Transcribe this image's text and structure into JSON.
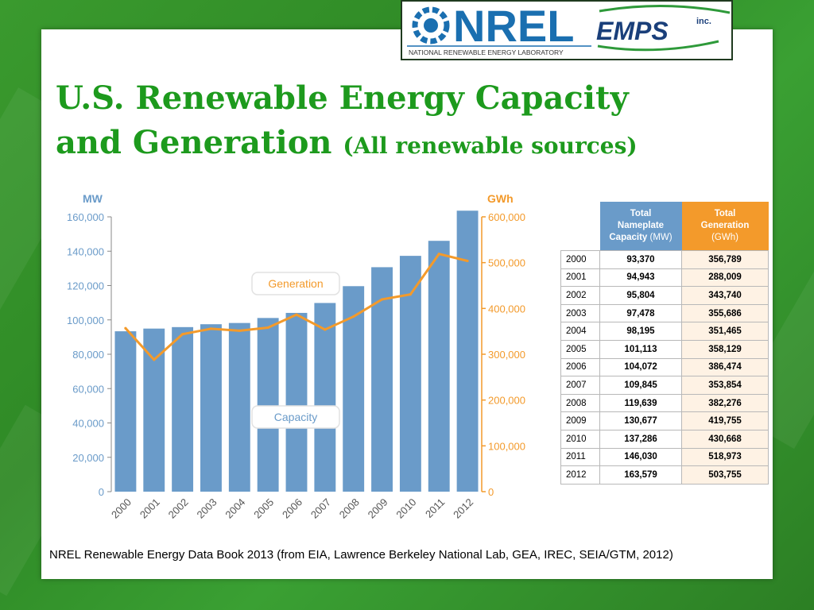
{
  "slide": {
    "title_line1": "U.S. Renewable Energy Capacity",
    "title_line2": "and Generation",
    "title_sub": "(All renewable sources)",
    "caption": "NREL Renewable Energy Data Book 2013 (from EIA, Lawrence Berkeley National Lab, GEA, IREC, SEIA/GTM, 2012)"
  },
  "logo": {
    "nrel_text": "NREL",
    "nrel_subtitle": "NATIONAL RENEWABLE ENERGY LABORATORY",
    "emps_text": "EMPS",
    "emps_inc": "inc."
  },
  "table": {
    "header_mw_line1": "Total",
    "header_mw_line2": "Nameplate",
    "header_mw_line3": "Capacity",
    "header_mw_unit": "(MW)",
    "header_gw_line1": "Total",
    "header_gw_line2": "Generation",
    "header_gw_unit": "(GWh)",
    "rows": [
      {
        "year": "2000",
        "mw": "93,370",
        "gwh": "356,789"
      },
      {
        "year": "2001",
        "mw": "94,943",
        "gwh": "288,009"
      },
      {
        "year": "2002",
        "mw": "95,804",
        "gwh": "343,740"
      },
      {
        "year": "2003",
        "mw": "97,478",
        "gwh": "355,686"
      },
      {
        "year": "2004",
        "mw": "98,195",
        "gwh": "351,465"
      },
      {
        "year": "2005",
        "mw": "101,113",
        "gwh": "358,129"
      },
      {
        "year": "2006",
        "mw": "104,072",
        "gwh": "386,474"
      },
      {
        "year": "2007",
        "mw": "109,845",
        "gwh": "353,854"
      },
      {
        "year": "2008",
        "mw": "119,639",
        "gwh": "382,276"
      },
      {
        "year": "2009",
        "mw": "130,677",
        "gwh": "419,755"
      },
      {
        "year": "2010",
        "mw": "137,286",
        "gwh": "430,668"
      },
      {
        "year": "2011",
        "mw": "146,030",
        "gwh": "518,973"
      },
      {
        "year": "2012",
        "mw": "163,579",
        "gwh": "503,755"
      }
    ]
  },
  "chart_data": {
    "type": "bar",
    "categories": [
      "2000",
      "2001",
      "2002",
      "2003",
      "2004",
      "2005",
      "2006",
      "2007",
      "2008",
      "2009",
      "2010",
      "2011",
      "2012"
    ],
    "series": [
      {
        "name": "Capacity",
        "type": "bar",
        "axis": "left",
        "color": "#6a9bc9",
        "values": [
          93370,
          94943,
          95804,
          97478,
          98195,
          101113,
          104072,
          109845,
          119639,
          130677,
          137286,
          146030,
          163579
        ]
      },
      {
        "name": "Generation",
        "type": "line",
        "axis": "right",
        "color": "#f39a2b",
        "values": [
          356789,
          288009,
          343740,
          355686,
          351465,
          358129,
          386474,
          353854,
          382276,
          419755,
          430668,
          518973,
          503755
        ]
      }
    ],
    "y_left": {
      "label": "MW",
      "ylim": [
        0,
        160000
      ],
      "ticks": [
        "0",
        "20,000",
        "40,000",
        "60,000",
        "80,000",
        "100,000",
        "120,000",
        "140,000",
        "160,000"
      ]
    },
    "y_right": {
      "label": "GWh",
      "ylim": [
        0,
        600000
      ],
      "ticks": [
        "0",
        "100,000",
        "200,000",
        "300,000",
        "400,000",
        "500,000",
        "600,000"
      ]
    },
    "callouts": [
      "Generation",
      "Capacity"
    ],
    "left_color": "#6a9bc9",
    "right_color": "#f39a2b"
  }
}
